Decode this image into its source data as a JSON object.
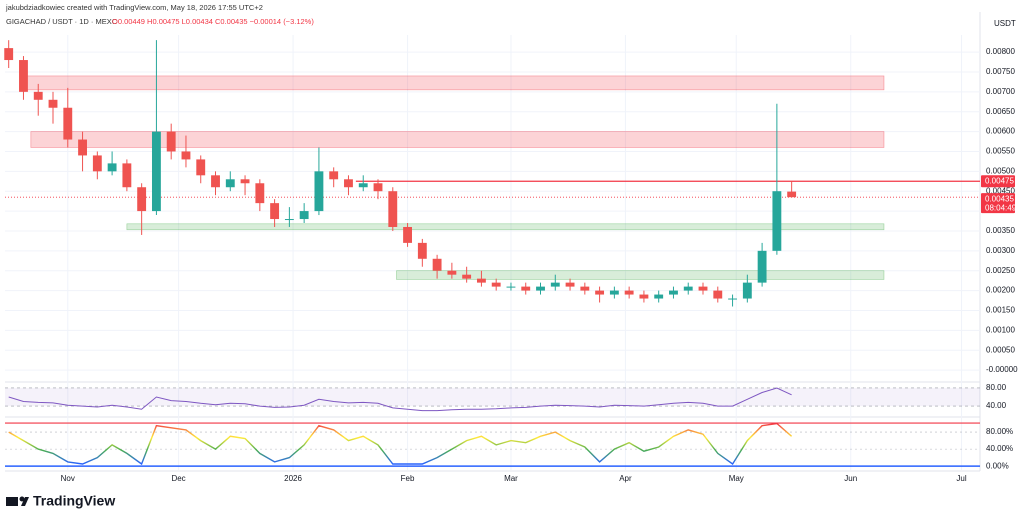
{
  "header": {
    "credit": "jakubdziadkowiec created with TradingView.com, May 18, 2026 17:55 UTC+2",
    "symbol": "GIGACHAD / USDT · 1D · MEXC",
    "ohlc": "O0.00449 H0.00475 L0.00434 C0.00435 −0.00014 (−3.12%)"
  },
  "footer": {
    "brand": "TradingView"
  },
  "chart_data": {
    "type": "candlestick",
    "currency": "USDT",
    "x": [
      -16,
      -12,
      -8,
      -4,
      0,
      4,
      8,
      12,
      16,
      20,
      24,
      28,
      32,
      36,
      40,
      44,
      48,
      52,
      56,
      60,
      64,
      68,
      72,
      76,
      80,
      84,
      88,
      92,
      96,
      100,
      104,
      108,
      112,
      116,
      120,
      124,
      128,
      132,
      136,
      140,
      144,
      148,
      152,
      156,
      160,
      164,
      168,
      172,
      176,
      180,
      184,
      188,
      192,
      196
    ],
    "open": [
      0.0081,
      0.0078,
      0.007,
      0.0068,
      0.0066,
      0.0058,
      0.0054,
      0.005,
      0.0052,
      0.0046,
      0.004,
      0.006,
      0.0055,
      0.0053,
      0.0049,
      0.0046,
      0.0048,
      0.0047,
      0.0042,
      0.0038,
      0.0038,
      0.004,
      0.005,
      0.0048,
      0.0046,
      0.0047,
      0.0045,
      0.0036,
      0.0032,
      0.0028,
      0.0025,
      0.0024,
      0.0023,
      0.0022,
      0.0021,
      0.0021,
      0.002,
      0.0021,
      0.0022,
      0.0021,
      0.002,
      0.0019,
      0.002,
      0.0019,
      0.0018,
      0.0019,
      0.002,
      0.0021,
      0.002,
      0.0018,
      0.0018,
      0.0022,
      0.003,
      0.00449
    ],
    "high": [
      0.0083,
      0.0079,
      0.0072,
      0.007,
      0.0071,
      0.006,
      0.0055,
      0.0055,
      0.0053,
      0.0047,
      0.0083,
      0.0062,
      0.0059,
      0.0054,
      0.005,
      0.005,
      0.0049,
      0.0048,
      0.0043,
      0.0041,
      0.0042,
      0.0056,
      0.0051,
      0.0049,
      0.0049,
      0.0048,
      0.0046,
      0.0037,
      0.0033,
      0.0029,
      0.0027,
      0.0026,
      0.0025,
      0.0023,
      0.0022,
      0.0022,
      0.0022,
      0.0024,
      0.0023,
      0.0022,
      0.0021,
      0.0021,
      0.0021,
      0.002,
      0.002,
      0.0021,
      0.0022,
      0.0022,
      0.0021,
      0.0019,
      0.0024,
      0.0032,
      0.0067,
      0.00475
    ],
    "low": [
      0.0076,
      0.0068,
      0.0064,
      0.0062,
      0.0056,
      0.005,
      0.0048,
      0.0049,
      0.0045,
      0.0034,
      0.0039,
      0.0053,
      0.0051,
      0.0047,
      0.0044,
      0.0045,
      0.0044,
      0.004,
      0.0036,
      0.0036,
      0.0037,
      0.0039,
      0.0046,
      0.0044,
      0.0045,
      0.0043,
      0.0035,
      0.0031,
      0.0026,
      0.0023,
      0.0023,
      0.0022,
      0.0021,
      0.002,
      0.002,
      0.0019,
      0.0019,
      0.002,
      0.002,
      0.0019,
      0.0017,
      0.0018,
      0.0018,
      0.0017,
      0.0017,
      0.0018,
      0.0019,
      0.0019,
      0.0017,
      0.0016,
      0.0017,
      0.0021,
      0.0029,
      0.00434
    ],
    "close": [
      0.0078,
      0.007,
      0.0068,
      0.0066,
      0.0058,
      0.0054,
      0.005,
      0.0052,
      0.0046,
      0.004,
      0.006,
      0.0055,
      0.0053,
      0.0049,
      0.0046,
      0.0048,
      0.0047,
      0.0042,
      0.0038,
      0.0038,
      0.004,
      0.005,
      0.0048,
      0.0046,
      0.0047,
      0.0045,
      0.0036,
      0.0032,
      0.0028,
      0.0025,
      0.0024,
      0.0023,
      0.0022,
      0.0021,
      0.0021,
      0.002,
      0.0021,
      0.0022,
      0.0021,
      0.002,
      0.0019,
      0.002,
      0.0019,
      0.0018,
      0.0019,
      0.002,
      0.0021,
      0.002,
      0.0018,
      0.0018,
      0.0022,
      0.003,
      0.0045,
      0.00435
    ],
    "up_color": "#26a69a",
    "down_color": "#ef5350",
    "xlim": [
      -17,
      247
    ],
    "xticks": [
      {
        "value": 0,
        "label": "Nov"
      },
      {
        "value": 30,
        "label": "Dec"
      },
      {
        "value": 61,
        "label": "2026"
      },
      {
        "value": 92,
        "label": "Feb"
      },
      {
        "value": 120,
        "label": "Mar"
      },
      {
        "value": 151,
        "label": "Apr"
      },
      {
        "value": 181,
        "label": "May"
      },
      {
        "value": 212,
        "label": "Jun"
      },
      {
        "value": 242,
        "label": "Jul"
      }
    ],
    "ylim": [
      -0.0003,
      0.00843
    ],
    "yticks": [
      {
        "value": 0,
        "label": "-0.00000"
      },
      {
        "value": 0.0005,
        "label": "0.00050"
      },
      {
        "value": 0.001,
        "label": "0.00100"
      },
      {
        "value": 0.0015,
        "label": "0.00150"
      },
      {
        "value": 0.002,
        "label": "0.00200"
      },
      {
        "value": 0.0025,
        "label": "0.00250"
      },
      {
        "value": 0.003,
        "label": "0.00300"
      },
      {
        "value": 0.0035,
        "label": "0.00350"
      },
      {
        "value": 0.004,
        "label": "0.00400"
      },
      {
        "value": 0.0045,
        "label": "0.00450"
      },
      {
        "value": 0.005,
        "label": "0.00500"
      },
      {
        "value": 0.0055,
        "label": "0.00550"
      },
      {
        "value": 0.006,
        "label": "0.00600"
      },
      {
        "value": 0.0065,
        "label": "0.00650"
      },
      {
        "value": 0.007,
        "label": "0.00700"
      },
      {
        "value": 0.0075,
        "label": "0.00750"
      },
      {
        "value": 0.008,
        "label": "0.00800"
      }
    ],
    "zones": [
      {
        "bottom": 0.00705,
        "top": 0.0074,
        "start": -12,
        "end": 221,
        "color": "#f23645"
      },
      {
        "bottom": 0.0056,
        "top": 0.006,
        "start": -10,
        "end": 221,
        "color": "#f23645"
      },
      {
        "bottom": 0.00353,
        "top": 0.00368,
        "start": 16,
        "end": 221,
        "color": "#4caf50"
      },
      {
        "bottom": 0.00228,
        "top": 0.0025,
        "start": 89,
        "end": 221,
        "color": "#4caf50"
      }
    ],
    "level": {
      "value": 0.00475,
      "label": "0.00475",
      "start": 78,
      "color": "#f23645"
    },
    "last_price": {
      "value": 0.00435,
      "label": "0.00435",
      "countdown": "08:04:49",
      "color": "#f23645"
    },
    "rsi": {
      "color": "#7e57c2",
      "ylim": [
        18,
        91
      ],
      "yticks": [
        {
          "value": 80,
          "label": "80.00"
        },
        {
          "value": 40,
          "label": "40.00"
        }
      ],
      "values": [
        60,
        50,
        48,
        47,
        42,
        40,
        38,
        42,
        38,
        33,
        60,
        52,
        50,
        46,
        43,
        46,
        45,
        40,
        37,
        38,
        42,
        55,
        50,
        47,
        48,
        46,
        36,
        33,
        30,
        30,
        32,
        33,
        33,
        34,
        36,
        37,
        40,
        42,
        41,
        40,
        38,
        42,
        41,
        40,
        43,
        46,
        48,
        46,
        40,
        40,
        55,
        70,
        80,
        65
      ]
    },
    "stoch": {
      "top_color": "#f23645",
      "bottom_color": "#2962ff",
      "ylim": [
        -9,
        113
      ],
      "yticks": [
        {
          "value": 80,
          "label": "80.00%"
        },
        {
          "value": 40,
          "label": "40.00%"
        },
        {
          "value": 0,
          "label": "0.00%"
        }
      ],
      "values": [
        80,
        60,
        40,
        30,
        10,
        5,
        20,
        50,
        30,
        5,
        95,
        90,
        85,
        60,
        40,
        70,
        65,
        30,
        10,
        20,
        50,
        95,
        85,
        60,
        70,
        50,
        5,
        5,
        5,
        20,
        40,
        60,
        70,
        50,
        60,
        55,
        70,
        80,
        60,
        45,
        10,
        40,
        55,
        35,
        45,
        70,
        85,
        75,
        30,
        5,
        60,
        95,
        100,
        70
      ]
    }
  }
}
